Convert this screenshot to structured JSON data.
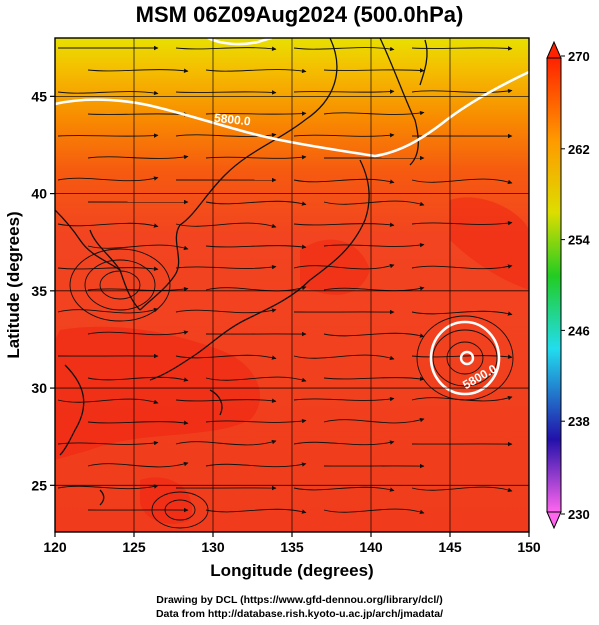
{
  "title": "MSM 06Z09Aug2024 (500.0hPa)",
  "x_axis": {
    "label": "Longitude (degrees)",
    "min": 120,
    "max": 150,
    "ticks": [
      120,
      125,
      130,
      135,
      140,
      145,
      150
    ]
  },
  "y_axis": {
    "label": "Latitude  (degrees)",
    "min": 22.6,
    "max": 48,
    "ticks": [
      25,
      30,
      35,
      40,
      45
    ]
  },
  "colorbar": {
    "min": 230,
    "max": 270,
    "ticks": [
      230,
      238,
      246,
      254,
      262,
      270
    ],
    "colors": [
      "#ff66ee",
      "#1111cc",
      "#22ddee",
      "#22cc22",
      "#dddd00",
      "#ff9900",
      "#ff2200"
    ]
  },
  "contour_labels": [
    {
      "text": "5800.0",
      "lon": 131.2,
      "lat": 43.6
    },
    {
      "text": "5800.0",
      "lon": 147.0,
      "lat": 30.4
    }
  ],
  "credit": {
    "line1": "Drawing by DCL (https://www.gfd-dennou.org/library/dcl/)",
    "line2": "Data from http://database.rish.kyoto-u.ac.jp/arch/jmadata/"
  }
}
